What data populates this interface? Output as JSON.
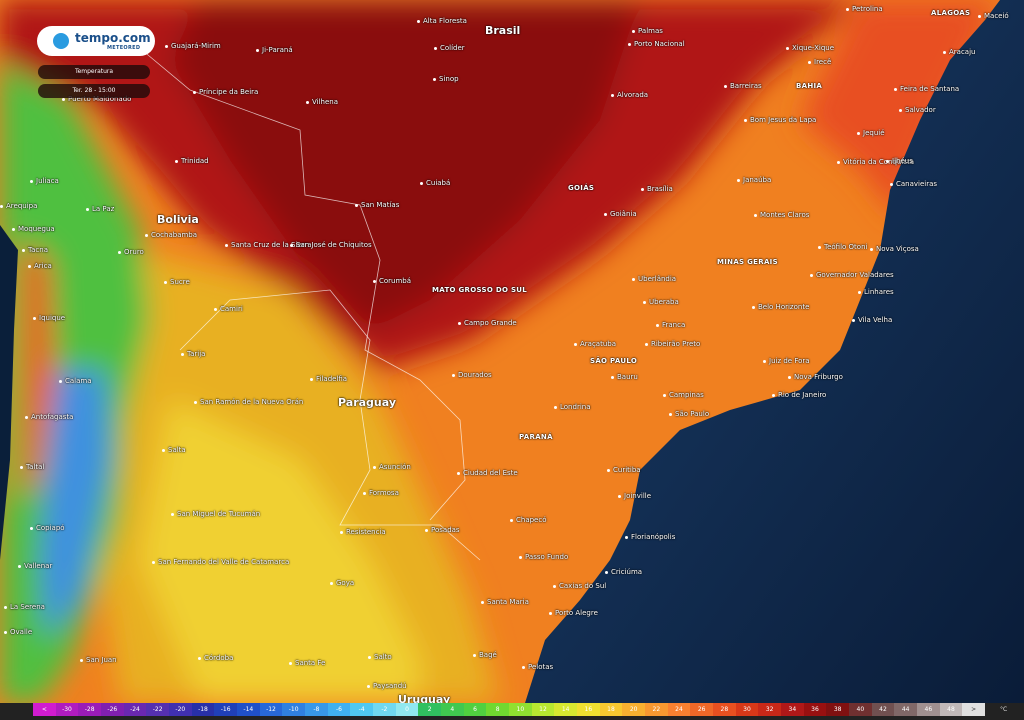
{
  "header": {
    "brand": "tempo.com",
    "sub_brand": "METEORED",
    "layer": "Temperatura",
    "time": "Ter. 28 - 15:00"
  },
  "map": {
    "countries": [
      "Brasil",
      "Bolivia",
      "Paraguay",
      "Uruguay"
    ],
    "states": [
      "ALAGOAS",
      "BAHIA",
      "GOIÁS",
      "MINAS GERAIS",
      "MATO GROSSO DO SUL",
      "SÃO PAULO",
      "PARANÁ"
    ],
    "cities": [
      "Petrolina",
      "Maceió",
      "Alta Floresta",
      "Palmas",
      "Porto Nacional",
      "Xique-Xique",
      "Aracaju",
      "Guajará-Mirim",
      "Ji-Paraná",
      "Colíder",
      "Irecê",
      "Sinop",
      "Barreiras",
      "Feira de Santana",
      "Príncipe da Beira",
      "Vilhena",
      "Alvorada",
      "Salvador",
      "Bom Jesus da Lapa",
      "Jequié",
      "Trinidad",
      "Vitória da Conquista",
      "Ilhéus",
      "Cuiabá",
      "Brasília",
      "Janaúba",
      "Canavieiras",
      "Juliaca",
      "La Paz",
      "Arequipa",
      "San Matías",
      "Goiânia",
      "Montes Claros",
      "Moquegua",
      "Cochabamba",
      "Santa Cruz de la Sierra",
      "San José de Chiquitos",
      "Teófilo Otoni",
      "Nova Viçosa",
      "Oruro",
      "Tacna",
      "Arica",
      "Uberlândia",
      "Governador Valadares",
      "Sucre",
      "Corumbá",
      "Linhares",
      "Uberaba",
      "Camiri",
      "Belo Horizonte",
      "Iquique",
      "Campo Grande",
      "Franca",
      "Vila Velha",
      "Araçatuba",
      "Ribeirão Preto",
      "Tarija",
      "Juiz de Fora",
      "Calama",
      "Filadelfia",
      "Dourados",
      "Bauru",
      "Nova Friburgo",
      "Campinas",
      "Rio de Janeiro",
      "Antofagasta",
      "San Ramón de la Nueva Orán",
      "Londrina",
      "São Paulo",
      "Salta",
      "Asunción",
      "Ciudad del Este",
      "Taltal",
      "Curitiba",
      "Formosa",
      "Joinville",
      "San Miguel de Tucumán",
      "Chapecó",
      "Resistencia",
      "Posadas",
      "Copiapó",
      "Florianópolis",
      "Passo Fundo",
      "San Fernando del Valle de Catamarca",
      "Vallenar",
      "Caxias do Sul",
      "Criciúma",
      "Goya",
      "Santa Maria",
      "La Serena",
      "Porto Alegre",
      "Ovalle",
      "Córdoba",
      "San Juan",
      "Santa Fe",
      "Salto",
      "Bagé",
      "Pelotas",
      "Paysandú",
      "Puerto Maldonado"
    ]
  },
  "scale": {
    "low_label": "<",
    "high_label": ">",
    "unit": "°C",
    "low_color": "#d01cd0",
    "high_color": "#e0e0e0",
    "ticks": [
      -30,
      -28,
      -26,
      -24,
      -22,
      -20,
      -18,
      -16,
      -14,
      -12,
      -10,
      -8,
      -6,
      -4,
      -2,
      0,
      2,
      4,
      6,
      8,
      10,
      12,
      14,
      16,
      18,
      20,
      22,
      24,
      26,
      28,
      30,
      32,
      34,
      36,
      38,
      40,
      42,
      44,
      46,
      48
    ],
    "colors": [
      "#b01cc0",
      "#9a1cb8",
      "#8020b0",
      "#6a28b0",
      "#5530b0",
      "#4030b0",
      "#2830a8",
      "#2040b8",
      "#2050c8",
      "#2868d8",
      "#3080e0",
      "#3898e8",
      "#40b0f0",
      "#50c8f0",
      "#70d8f0",
      "#90e8f0",
      "#30c060",
      "#40c850",
      "#50d040",
      "#70d830",
      "#90e030",
      "#b8e830",
      "#d8e830",
      "#f0e030",
      "#f8c830",
      "#f8b030",
      "#f89830",
      "#f88030",
      "#f06828",
      "#e85020",
      "#d83818",
      "#c82818",
      "#b01818",
      "#981010",
      "#801010",
      "#703030",
      "#705050",
      "#806868",
      "#a09090",
      "#c0b8b8"
    ]
  }
}
